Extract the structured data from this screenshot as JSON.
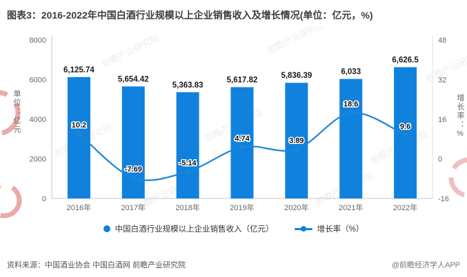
{
  "title": "图表3：2016-2022年中国白酒行业规模以上企业销售收入及增长情况(单位：亿元，%)",
  "chart_data": {
    "type": "bar+line",
    "categories": [
      "2016年",
      "2017年",
      "2018年",
      "2019年",
      "2020年",
      "2021年",
      "2022年"
    ],
    "series": [
      {
        "name": "中国白酒行业规模以上企业销售收入（亿元）",
        "type": "bar",
        "axis": "left",
        "color": "#1081dd",
        "values": [
          6125.74,
          5654.42,
          5363.83,
          5617.82,
          5836.39,
          6033,
          6626.5
        ],
        "labels": [
          "6,125.74",
          "5,654.42",
          "5,363.83",
          "5,617.82",
          "5,836.39",
          "6,033",
          "6,626.5"
        ]
      },
      {
        "name": "增长率（%）",
        "type": "line",
        "axis": "right",
        "color": "#1a86d9",
        "values": [
          10.2,
          -7.69,
          -5.14,
          4.74,
          3.89,
          18.6,
          9.6
        ],
        "labels": [
          "10.2",
          "-7.69",
          "-5.14",
          "4.74",
          "3.89",
          "18.6",
          "9.6"
        ]
      }
    ],
    "left_axis": {
      "title": "单位：亿元",
      "min": 0,
      "max": 8000,
      "ticks": [
        8000,
        6000,
        4000,
        2000,
        0
      ]
    },
    "right_axis": {
      "title": "增长率：%",
      "min": -16,
      "max": 48,
      "ticks": [
        48,
        32,
        16,
        0,
        -16
      ]
    },
    "legend_position": "bottom",
    "grid": false
  },
  "watermark": {
    "text": "前瞻产业研究院",
    "accent_color": "#cc2a2a"
  },
  "footer": {
    "source": "资料来源：中国酒业协会 中国白酒网 前瞻产业研究院",
    "credit": "@前瞻经济学人APP"
  }
}
